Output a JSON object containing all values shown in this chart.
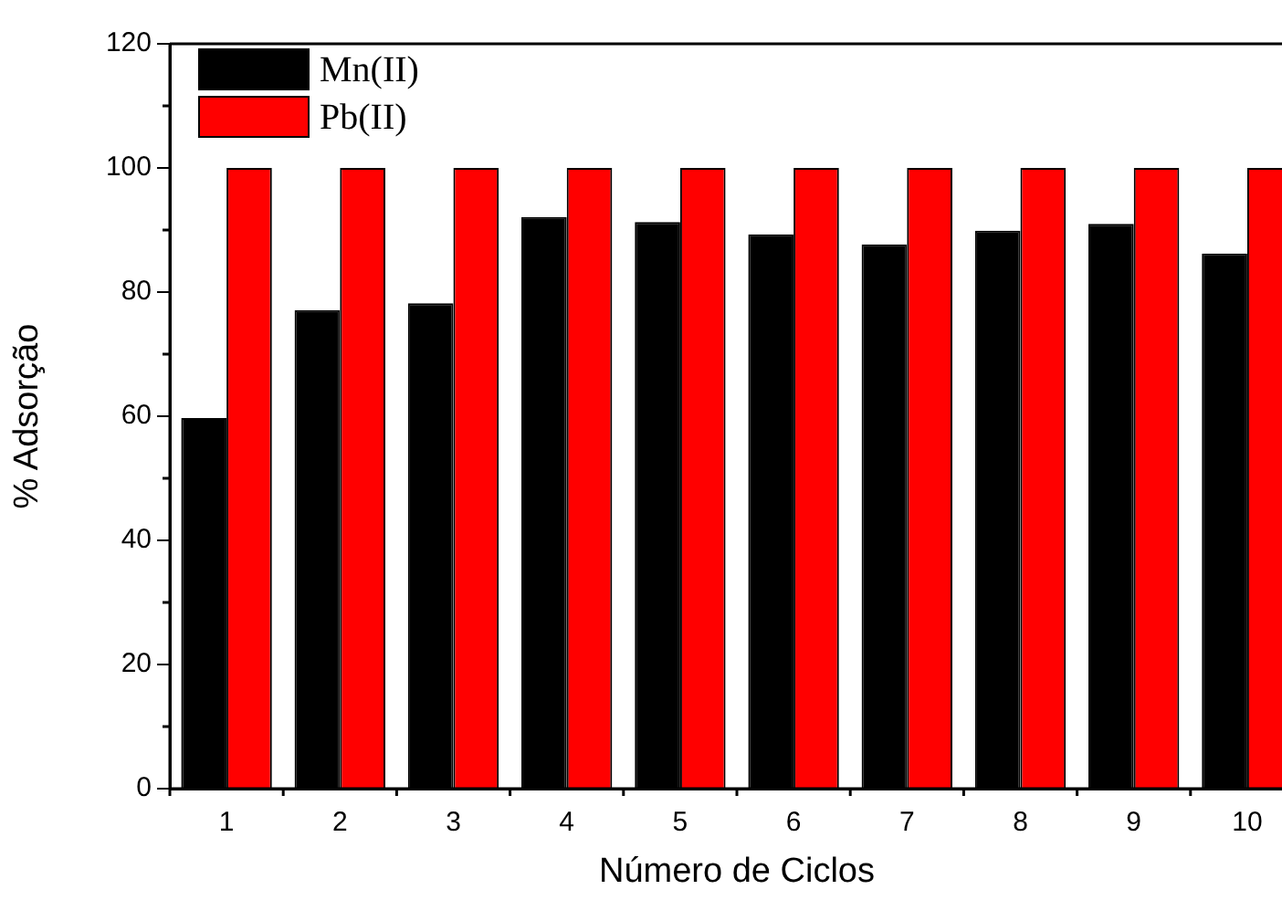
{
  "chart_data": {
    "type": "bar",
    "xlabel": "Número de Ciclos",
    "ylabel": "% Adsorção",
    "categories": [
      "1",
      "2",
      "3",
      "4",
      "5",
      "6",
      "7",
      "8",
      "9",
      "10"
    ],
    "series": [
      {
        "name": "Mn(II)",
        "color": "#000000",
        "values": [
          59.7,
          77.1,
          78.2,
          92.1,
          91.3,
          89.3,
          87.7,
          89.9,
          91.0,
          86.2
        ]
      },
      {
        "name": "Pb(II)",
        "color": "#ff0000",
        "values": [
          100,
          100,
          100,
          100,
          100,
          100,
          100,
          100,
          100,
          100
        ]
      }
    ],
    "ylim": [
      0,
      120
    ],
    "yticks": [
      0,
      20,
      40,
      60,
      80,
      100,
      120
    ],
    "grid": false,
    "legend": "top left"
  }
}
